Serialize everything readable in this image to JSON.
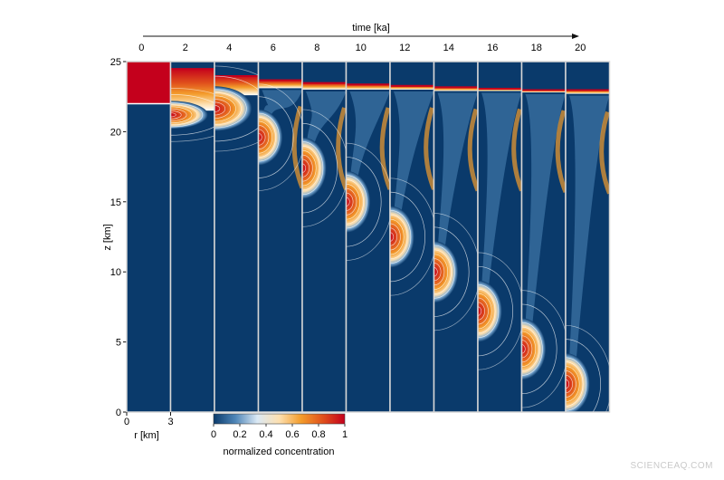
{
  "chart_data": {
    "type": "heatmap",
    "title": "",
    "time_axis": {
      "label": "time [ka]",
      "ticks": [
        0,
        2,
        4,
        6,
        8,
        10,
        12,
        14,
        16,
        18,
        20
      ]
    },
    "z_axis": {
      "label": "z [km]",
      "ticks": [
        0,
        5,
        10,
        15,
        20,
        25
      ],
      "range": [
        0,
        25
      ]
    },
    "r_axis": {
      "label": "r [km]",
      "ticks": [
        0,
        3
      ],
      "range": [
        0,
        3
      ]
    },
    "colorbar": {
      "label": "normalized concentration",
      "ticks": [
        "0",
        "0.2",
        "0.4",
        "0.6",
        "0.8",
        "1"
      ],
      "range": [
        0,
        1
      ],
      "colors": [
        "#0a3a6b",
        "#4f86b8",
        "#dbe9f5",
        "#fde0b0",
        "#f39c2b",
        "#e0501c",
        "#c4001c"
      ]
    },
    "panels": [
      {
        "time": 0,
        "layer_top": 25,
        "layer_bottom": 22.0,
        "blob_center_z": null,
        "blob_radius_z": 0
      },
      {
        "time": 2,
        "layer_top": 24.4,
        "layer_bottom": 21.5,
        "blob_center_z": 21.2,
        "blob_radius_z": 1.0
      },
      {
        "time": 4,
        "layer_top": 23.9,
        "layer_bottom": 22.6,
        "blob_center_z": 20.6,
        "blob_radius_z": 1.6
      },
      {
        "time": 6,
        "layer_top": 23.6,
        "layer_bottom": 23.1,
        "blob_center_z": 19.6,
        "blob_radius_z": 2.0
      },
      {
        "time": 8,
        "layer_top": 23.4,
        "layer_bottom": 23.0,
        "blob_center_z": 17.4,
        "blob_radius_z": 2.2
      },
      {
        "time": 10,
        "layer_top": 23.3,
        "layer_bottom": 23.0,
        "blob_center_z": 15.0,
        "blob_radius_z": 2.2
      },
      {
        "time": 12,
        "layer_top": 23.2,
        "layer_bottom": 23.0,
        "blob_center_z": 12.5,
        "blob_radius_z": 2.2
      },
      {
        "time": 14,
        "layer_top": 23.1,
        "layer_bottom": 22.9,
        "blob_center_z": 10.0,
        "blob_radius_z": 2.2
      },
      {
        "time": 16,
        "layer_top": 23.0,
        "layer_bottom": 22.9,
        "blob_center_z": 7.2,
        "blob_radius_z": 2.2
      },
      {
        "time": 18,
        "layer_top": 22.9,
        "layer_bottom": 22.8,
        "blob_center_z": 4.5,
        "blob_radius_z": 2.2
      },
      {
        "time": 20,
        "layer_top": 22.9,
        "layer_bottom": 22.7,
        "blob_center_z": 2.0,
        "blob_radius_z": 2.2
      }
    ]
  },
  "watermark": "SCIENCEAQ.COM"
}
